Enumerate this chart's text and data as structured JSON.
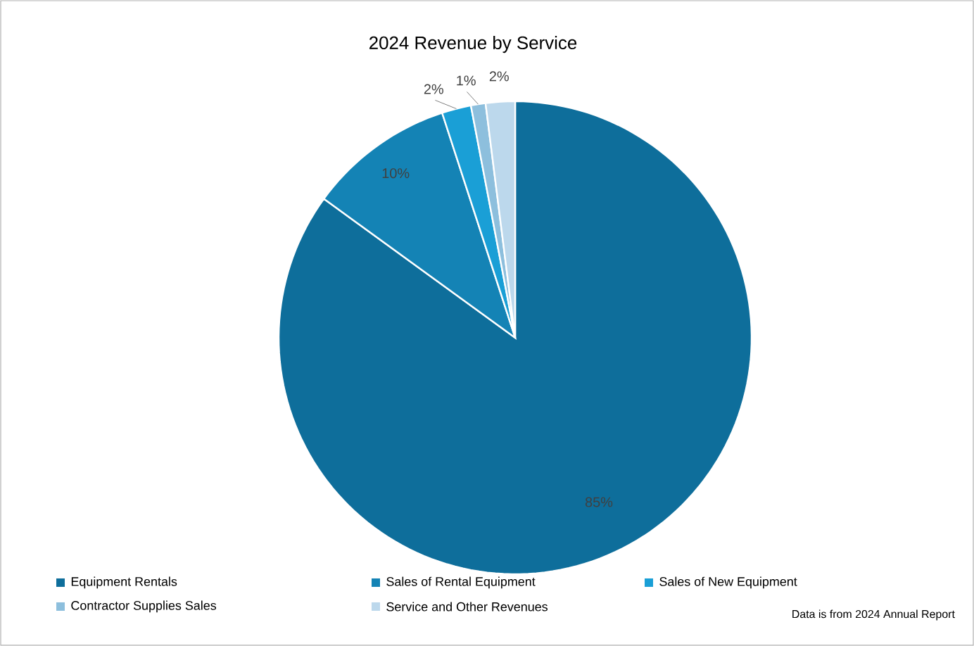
{
  "chart_data": {
    "type": "pie",
    "title": "2024 Revenue by Service",
    "categories": [
      "Equipment Rentals",
      "Sales of Rental Equipment",
      "Sales of New Equipment",
      "Contractor Supplies Sales",
      "Service and Other Revenues"
    ],
    "values": [
      85,
      10,
      2,
      1,
      2
    ],
    "colors": [
      "#0e6e9b",
      "#1483b5",
      "#1a9fd6",
      "#8dbfdd",
      "#bcd8ec"
    ],
    "value_labels": [
      "85%",
      "10%",
      "2%",
      "1%",
      "2%"
    ],
    "legend": "bottom",
    "annotations": [
      "Data is from 2024 Annual Report"
    ]
  }
}
